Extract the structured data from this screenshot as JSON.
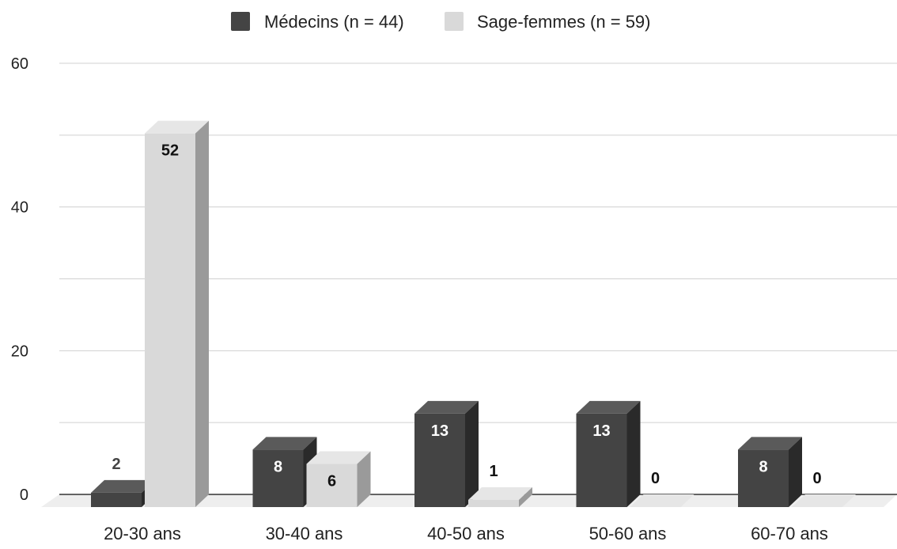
{
  "chart_data": {
    "type": "bar",
    "style": "3d-clustered",
    "categories": [
      "20-30 ans",
      "30-40 ans",
      "40-50 ans",
      "50-60 ans",
      "60-70 ans"
    ],
    "series": [
      {
        "name": "Médecins (n = 44)",
        "values": [
          2,
          8,
          13,
          13,
          8
        ],
        "labels": [
          "2",
          "8",
          "13",
          "13",
          "8"
        ],
        "color": "#444444"
      },
      {
        "name": "Sage-femmes (n = 59)",
        "values": [
          52,
          6,
          1,
          0,
          0
        ],
        "labels": [
          "52",
          "6",
          "1",
          "0",
          "0"
        ],
        "color": "#d9d9d9"
      }
    ],
    "yticks": [
      "0",
      "20",
      "40",
      "60"
    ],
    "ylim": [
      0,
      60
    ],
    "grid": true,
    "legend_position": "top-center",
    "title": "",
    "xlabel": "",
    "ylabel": ""
  }
}
